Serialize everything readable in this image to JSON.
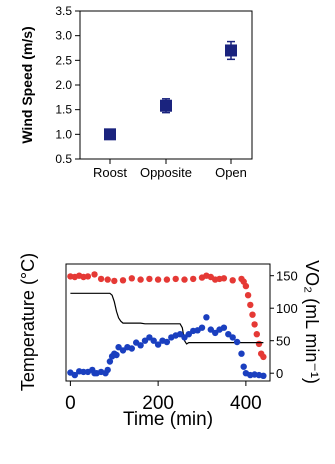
{
  "chart_data": [
    {
      "type": "scatter",
      "ylabel": "Wind Speed (m/s)",
      "categories": [
        "Roost",
        "Opposite",
        "Open"
      ],
      "ylim": [
        0.5,
        3.5
      ],
      "yticks": [
        "0.5",
        "1.0",
        "1.5",
        "2.0",
        "2.5",
        "3.0",
        "3.5"
      ],
      "values": [
        1.0,
        1.58,
        2.7
      ],
      "errors": [
        0.06,
        0.14,
        0.18
      ],
      "marker": "square",
      "marker_color": "#1a237e"
    },
    {
      "type": "line",
      "xlabel": "Time (min)",
      "ylabel_left": "Temperature (°C)",
      "ylabel_right": "VO₂ (mL min⁻¹)",
      "xlim": [
        -10,
        455
      ],
      "xticks": [
        "0",
        "200",
        "400"
      ],
      "y_right_lim": [
        -12,
        168
      ],
      "y_right_ticks": [
        "0",
        "50",
        "100",
        "150"
      ],
      "series": [
        {
          "color": "#e53935",
          "style": "dots",
          "axis": "right",
          "x": [
            0,
            10,
            20,
            30,
            40,
            55,
            70,
            85,
            100,
            120,
            140,
            160,
            180,
            200,
            220,
            240,
            260,
            280,
            300,
            310,
            320,
            330,
            340,
            350,
            370,
            390,
            395,
            400,
            405,
            410,
            415,
            420,
            425,
            430,
            435,
            440
          ],
          "y": [
            149,
            148,
            150,
            148,
            149,
            152,
            145,
            144,
            142,
            143,
            146,
            144,
            145,
            144,
            144,
            145,
            144,
            145,
            147,
            150,
            148,
            144,
            145,
            146,
            143,
            145,
            141,
            134,
            120,
            105,
            90,
            75,
            60,
            45,
            30,
            25
          ]
        },
        {
          "color": "#000000",
          "style": "line",
          "axis": "right",
          "x": [
            0,
            90,
            95,
            100,
            105,
            110,
            115,
            120,
            130,
            140,
            150,
            160,
            170,
            180,
            200,
            220,
            240,
            250,
            255,
            260,
            265,
            270,
            300,
            340,
            370,
            400,
            440
          ],
          "y": [
            123,
            123,
            120,
            110,
            95,
            85,
            80,
            77,
            77,
            77,
            77,
            77,
            76,
            76,
            76,
            76,
            76,
            76,
            70,
            50,
            45,
            47,
            47,
            47,
            47,
            47,
            47
          ]
        },
        {
          "color": "#1a3fbf",
          "style": "dots",
          "axis": "right",
          "x": [
            0,
            10,
            20,
            30,
            40,
            50,
            55,
            60,
            70,
            80,
            85,
            90,
            95,
            100,
            105,
            110,
            120,
            130,
            140,
            150,
            160,
            170,
            180,
            190,
            200,
            210,
            220,
            230,
            240,
            250,
            260,
            270,
            280,
            290,
            300,
            310,
            320,
            330,
            340,
            350,
            360,
            370,
            380,
            390,
            395,
            400,
            410,
            420,
            430,
            440
          ],
          "y": [
            1,
            -3,
            3,
            2,
            2,
            5,
            0,
            0,
            2,
            0,
            5,
            18,
            26,
            30,
            28,
            40,
            35,
            40,
            38,
            47,
            43,
            50,
            55,
            50,
            44,
            50,
            48,
            55,
            58,
            60,
            55,
            60,
            65,
            66,
            70,
            86,
            67,
            62,
            67,
            70,
            60,
            55,
            48,
            30,
            10,
            0,
            -3,
            -2,
            -3,
            -4
          ]
        }
      ]
    }
  ]
}
